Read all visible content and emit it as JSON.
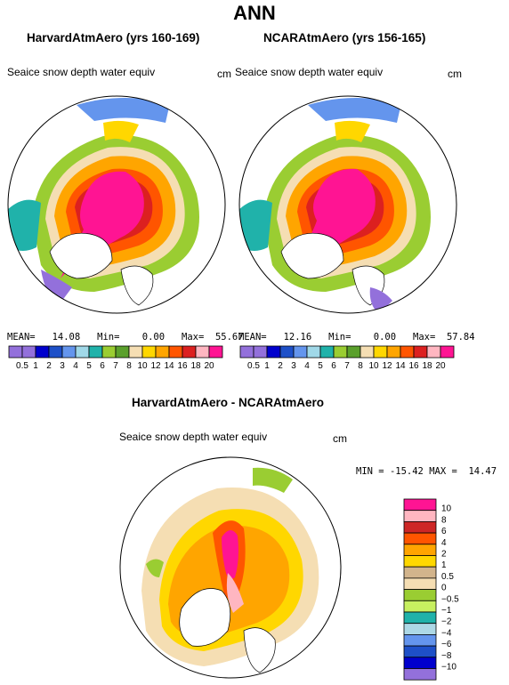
{
  "page_title": "ANN",
  "variable_label": "Seaice snow depth water equiv",
  "units": "cm",
  "panels": [
    {
      "title": "HarvardAtmAero (yrs 160-169)",
      "mean_label": "MEAN=",
      "mean": "14.08",
      "min_label": "Min=",
      "min": "0.00",
      "max_label": "Max=",
      "max": "55.67"
    },
    {
      "title": "NCARAtmAero (yrs 156-165)",
      "mean_label": "MEAN=",
      "mean": "12.16",
      "min_label": "Min=",
      "min": "0.00",
      "max_label": "Max=",
      "max": "57.84"
    }
  ],
  "abs_colorbar": {
    "labels": [
      "0.5",
      "1",
      "2",
      "3",
      "4",
      "5",
      "6",
      "7",
      "8",
      "10",
      "12",
      "14",
      "16",
      "18",
      "20"
    ],
    "colors": [
      "#9370db",
      "#0000cd",
      "#1e50c8",
      "#6495ed",
      "#a0d8e8",
      "#20b2aa",
      "#9acd32",
      "#5aa02c",
      "#f5deb3",
      "#ffd700",
      "#ffa500",
      "#ff5500",
      "#dc2020",
      "#ffb6c1",
      "#ff1493"
    ]
  },
  "diff_panel": {
    "title": "HarvardAtmAero - NCARAtmAero",
    "min_label": "MIN =",
    "min": "-15.42",
    "max_label": "MAX =",
    "max": "14.47"
  },
  "diff_colorbar": {
    "labels": [
      "10",
      "8",
      "6",
      "4",
      "2",
      "1",
      "0.5",
      "0",
      "−0.5",
      "−1",
      "−2",
      "−4",
      "−6",
      "−8",
      "−10"
    ],
    "colors": [
      "#ff1493",
      "#ffb6c1",
      "#cd2626",
      "#ff5500",
      "#ffa500",
      "#ffd700",
      "#d2b48c",
      "#f5deb3",
      "#9acd32",
      "#c8f060",
      "#20b2aa",
      "#add8e6",
      "#6495ed",
      "#1e50c8",
      "#0000cd",
      "#9370db"
    ]
  }
}
